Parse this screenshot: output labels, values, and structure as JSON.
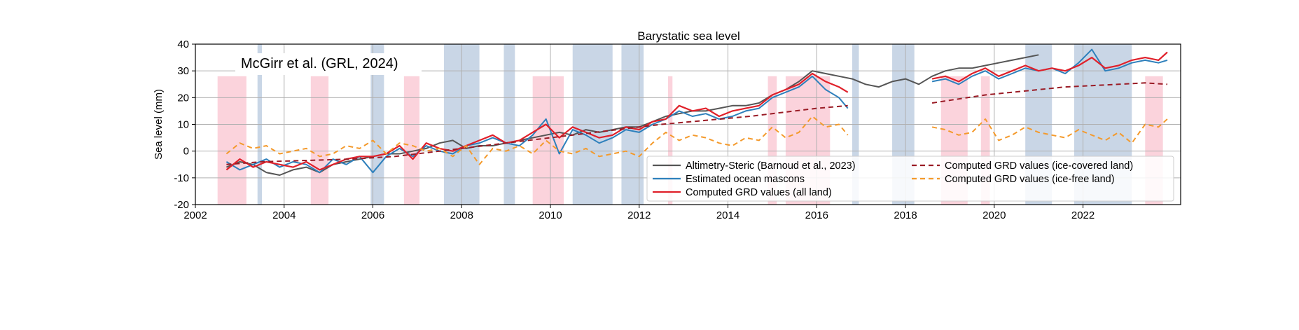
{
  "chart_data": {
    "type": "line",
    "title": "Barystatic sea level",
    "ylabel": "Sea level (mm)",
    "xlabel": "",
    "xlim": [
      2002,
      2024.2
    ],
    "ylim": [
      -20,
      40
    ],
    "x_ticks": [
      2002,
      2004,
      2006,
      2008,
      2010,
      2012,
      2014,
      2016,
      2018,
      2020,
      2022
    ],
    "y_ticks": [
      -20,
      -10,
      0,
      10,
      20,
      30,
      40
    ],
    "grid": true,
    "legend_position": "lower-right",
    "annotation": "McGirr et al. (GRL, 2024)",
    "colors": {
      "altimetry": "#555555",
      "mascons": "#2e80bc",
      "grd_all": "#e0202a",
      "grd_ice_covered": "#9a1b25",
      "grd_ice_free": "#f49a2c",
      "el_nino_band": "#fbd3dc",
      "la_nina_band": "#c9d6e6"
    },
    "shaded_periods": {
      "pink": [
        [
          2002.5,
          2003.15
        ],
        [
          2004.6,
          2005.0
        ],
        [
          2006.7,
          2007.05
        ],
        [
          2009.6,
          2010.3
        ],
        [
          2012.65,
          2012.75
        ],
        [
          2014.9,
          2015.1
        ],
        [
          2015.3,
          2016.3
        ],
        [
          2018.8,
          2019.4
        ],
        [
          2019.7,
          2019.9
        ],
        [
          2023.4,
          2023.8
        ]
      ],
      "blue": [
        [
          2003.4,
          2003.5
        ],
        [
          2005.95,
          2006.25
        ],
        [
          2007.6,
          2008.4
        ],
        [
          2008.95,
          2009.2
        ],
        [
          2010.5,
          2011.4
        ],
        [
          2011.6,
          2012.1
        ],
        [
          2016.8,
          2016.95
        ],
        [
          2017.7,
          2018.2
        ],
        [
          2020.7,
          2021.3
        ],
        [
          2021.8,
          2023.1
        ]
      ]
    },
    "series": [
      {
        "name": "Altimetry-Steric (Barnoud et al., 2023)",
        "style": "solid",
        "x": [
          2002.7,
          2003.0,
          2003.3,
          2003.6,
          2003.9,
          2004.2,
          2004.5,
          2004.8,
          2005.1,
          2005.4,
          2005.7,
          2006.0,
          2006.3,
          2006.6,
          2006.9,
          2007.2,
          2007.5,
          2007.8,
          2008.1,
          2008.4,
          2008.7,
          2009.0,
          2009.3,
          2009.6,
          2009.9,
          2010.2,
          2010.5,
          2010.8,
          2011.1,
          2011.4,
          2011.7,
          2012.0,
          2012.3,
          2012.6,
          2012.9,
          2013.2,
          2013.5,
          2013.8,
          2014.1,
          2014.4,
          2014.7,
          2015.0,
          2015.3,
          2015.6,
          2015.9,
          2016.2,
          2016.5,
          2016.8,
          2017.1,
          2017.4,
          2017.7,
          2018.0,
          2018.3,
          2018.6,
          2018.9,
          2019.2,
          2019.5,
          2019.8,
          2020.1,
          2020.4,
          2020.7,
          2021.0
        ],
        "y": [
          -6,
          -4,
          -5,
          -8,
          -9,
          -7,
          -6,
          -8,
          -5,
          -4,
          -3,
          -2,
          -1,
          -1,
          0,
          1,
          3,
          4,
          1,
          2,
          2,
          3,
          4,
          5,
          6,
          7,
          6,
          8,
          7,
          8,
          9,
          9,
          11,
          13,
          14,
          15,
          15,
          16,
          17,
          17,
          18,
          21,
          23,
          26,
          30,
          29,
          28,
          27,
          25,
          24,
          26,
          27,
          25,
          28,
          30,
          31,
          31,
          32,
          33,
          34,
          35,
          36
        ]
      },
      {
        "name": "Estimated ocean mascons",
        "style": "solid",
        "x": [
          2002.7,
          2003.0,
          2003.3,
          2003.6,
          2003.9,
          2004.2,
          2004.5,
          2004.8,
          2005.1,
          2005.4,
          2005.7,
          2006.0,
          2006.3,
          2006.6,
          2006.9,
          2007.2,
          2007.5,
          2007.8,
          2008.1,
          2008.4,
          2008.7,
          2009.0,
          2009.3,
          2009.6,
          2009.9,
          2010.2,
          2010.5,
          2010.8,
          2011.1,
          2011.4,
          2011.7,
          2012.0,
          2012.3,
          2012.6,
          2012.9,
          2013.2,
          2013.5,
          2013.8,
          2014.1,
          2014.4,
          2014.7,
          2015.0,
          2015.3,
          2015.6,
          2015.9,
          2016.2,
          2016.5,
          2016.7,
          2018.6,
          2018.9,
          2019.2,
          2019.5,
          2019.8,
          2020.1,
          2020.4,
          2020.7,
          2021.0,
          2021.3,
          2021.6,
          2021.9,
          2022.2,
          2022.5,
          2022.8,
          2023.1,
          2023.4,
          2023.7,
          2023.9
        ],
        "y": [
          -4,
          -7,
          -5,
          -3,
          -6,
          -4,
          -5,
          -8,
          -3,
          -5,
          -2,
          -8,
          -2,
          1,
          -2,
          2,
          0,
          -1,
          2,
          3,
          5,
          3,
          2,
          6,
          12,
          -1,
          8,
          6,
          3,
          5,
          8,
          7,
          10,
          12,
          15,
          13,
          14,
          12,
          13,
          15,
          16,
          20,
          22,
          24,
          28,
          23,
          20,
          16,
          26,
          27,
          25,
          28,
          30,
          27,
          29,
          31,
          30,
          31,
          29,
          33,
          38,
          30,
          31,
          33,
          34,
          33,
          34
        ]
      },
      {
        "name": "Computed GRD values (all land)",
        "style": "solid",
        "x": [
          2002.7,
          2003.0,
          2003.3,
          2003.6,
          2003.9,
          2004.2,
          2004.5,
          2004.8,
          2005.1,
          2005.4,
          2005.7,
          2006.0,
          2006.3,
          2006.6,
          2006.9,
          2007.2,
          2007.5,
          2007.8,
          2008.1,
          2008.4,
          2008.7,
          2009.0,
          2009.3,
          2009.6,
          2009.9,
          2010.2,
          2010.5,
          2010.8,
          2011.1,
          2011.4,
          2011.7,
          2012.0,
          2012.3,
          2012.6,
          2012.9,
          2013.2,
          2013.5,
          2013.8,
          2014.1,
          2014.4,
          2014.7,
          2015.0,
          2015.3,
          2015.6,
          2015.9,
          2016.2,
          2016.5,
          2016.7,
          2018.6,
          2018.9,
          2019.2,
          2019.5,
          2019.8,
          2020.1,
          2020.4,
          2020.7,
          2021.0,
          2021.3,
          2021.6,
          2021.9,
          2022.2,
          2022.5,
          2022.8,
          2023.1,
          2023.4,
          2023.7,
          2023.9
        ],
        "y": [
          -7,
          -3,
          -6,
          -4,
          -5,
          -6,
          -4,
          -7,
          -5,
          -3,
          -2,
          -2,
          -1,
          2,
          -3,
          3,
          1,
          0,
          2,
          4,
          6,
          3,
          4,
          7,
          10,
          5,
          9,
          7,
          5,
          6,
          9,
          8,
          11,
          12,
          17,
          15,
          16,
          13,
          15,
          16,
          17,
          21,
          23,
          25,
          29,
          26,
          24,
          22,
          27,
          28,
          26,
          29,
          31,
          28,
          30,
          32,
          30,
          31,
          30,
          32,
          35,
          31,
          32,
          34,
          35,
          34,
          37
        ]
      },
      {
        "name": "Computed GRD values (ice-covered land)",
        "style": "dashed",
        "x": [
          2002.7,
          2003.5,
          2004.5,
          2005.5,
          2006.5,
          2007.5,
          2008.5,
          2009.5,
          2010.5,
          2011.5,
          2012.5,
          2013.5,
          2014.5,
          2015.5,
          2016.0,
          2016.7,
          2018.6,
          2019.2,
          2019.8,
          2020.4,
          2021.0,
          2021.6,
          2022.2,
          2022.8,
          2023.4,
          2023.9
        ],
        "y": [
          -5,
          -4,
          -3.5,
          -3,
          -2,
          0,
          2,
          4,
          6,
          8,
          10,
          11.5,
          13,
          15,
          16,
          17,
          18,
          19.5,
          21,
          22,
          23,
          24,
          24.5,
          25,
          25.5,
          25
        ]
      },
      {
        "name": "Computed GRD values (ice-free land)",
        "style": "dashed",
        "x": [
          2002.7,
          2003.0,
          2003.3,
          2003.6,
          2003.9,
          2004.2,
          2004.5,
          2004.8,
          2005.1,
          2005.4,
          2005.7,
          2006.0,
          2006.3,
          2006.6,
          2006.9,
          2007.2,
          2007.5,
          2007.8,
          2008.1,
          2008.4,
          2008.7,
          2009.0,
          2009.3,
          2009.6,
          2009.9,
          2010.2,
          2010.5,
          2010.8,
          2011.1,
          2011.4,
          2011.7,
          2012.0,
          2012.3,
          2012.6,
          2012.9,
          2013.2,
          2013.5,
          2013.8,
          2014.1,
          2014.4,
          2014.7,
          2015.0,
          2015.3,
          2015.6,
          2015.9,
          2016.2,
          2016.5,
          2016.7,
          2018.6,
          2018.9,
          2019.2,
          2019.5,
          2019.8,
          2020.1,
          2020.4,
          2020.7,
          2021.0,
          2021.3,
          2021.6,
          2021.9,
          2022.2,
          2022.5,
          2022.8,
          2023.1,
          2023.4,
          2023.7,
          2023.9
        ],
        "y": [
          -1,
          3,
          1,
          2,
          -1,
          0,
          1,
          -2,
          -1,
          2,
          1,
          4,
          -1,
          3,
          2,
          0,
          1,
          -2,
          2,
          -5,
          1,
          0,
          2,
          -1,
          4,
          0,
          -1,
          1,
          -2,
          -1,
          0,
          -2,
          3,
          7,
          4,
          6,
          5,
          3,
          2,
          5,
          4,
          9,
          5,
          7,
          13,
          9,
          10,
          6,
          9,
          8,
          6,
          7,
          12,
          4,
          6,
          9,
          7,
          6,
          5,
          8,
          6,
          4,
          7,
          3,
          10,
          9,
          12
        ]
      }
    ]
  }
}
